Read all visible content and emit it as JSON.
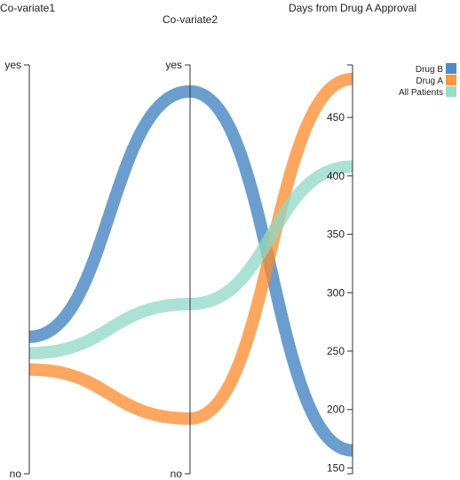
{
  "chart_data": {
    "type": "parallel-coordinates",
    "dimensions": [
      {
        "key": "covariate1",
        "title": "Co-variate1",
        "scale": "ordinal",
        "values": [
          "yes",
          "no"
        ]
      },
      {
        "key": "covariate2",
        "title": "Co-variate2",
        "scale": "ordinal",
        "values": [
          "yes",
          "no"
        ]
      },
      {
        "key": "days",
        "title": "Days from Drug A Approval",
        "scale": "linear",
        "ticks": [
          150,
          200,
          250,
          300,
          350,
          400,
          450
        ],
        "range": [
          145,
          495
        ]
      }
    ],
    "series": [
      {
        "name": "Drug B",
        "color": "#3a7dbd",
        "values": {
          "covariate1": 0.335,
          "covariate2": 0.935,
          "days": 165
        }
      },
      {
        "name": "Drug A",
        "color": "#ff8a2b",
        "values": {
          "covariate1": 0.255,
          "covariate2": 0.135,
          "days": 483
        }
      },
      {
        "name": "All Patients",
        "color": "#8fd8c6",
        "values": {
          "covariate1": 0.295,
          "covariate2": 0.415,
          "days": 408
        }
      }
    ],
    "legend": {
      "position": "top-right"
    }
  }
}
